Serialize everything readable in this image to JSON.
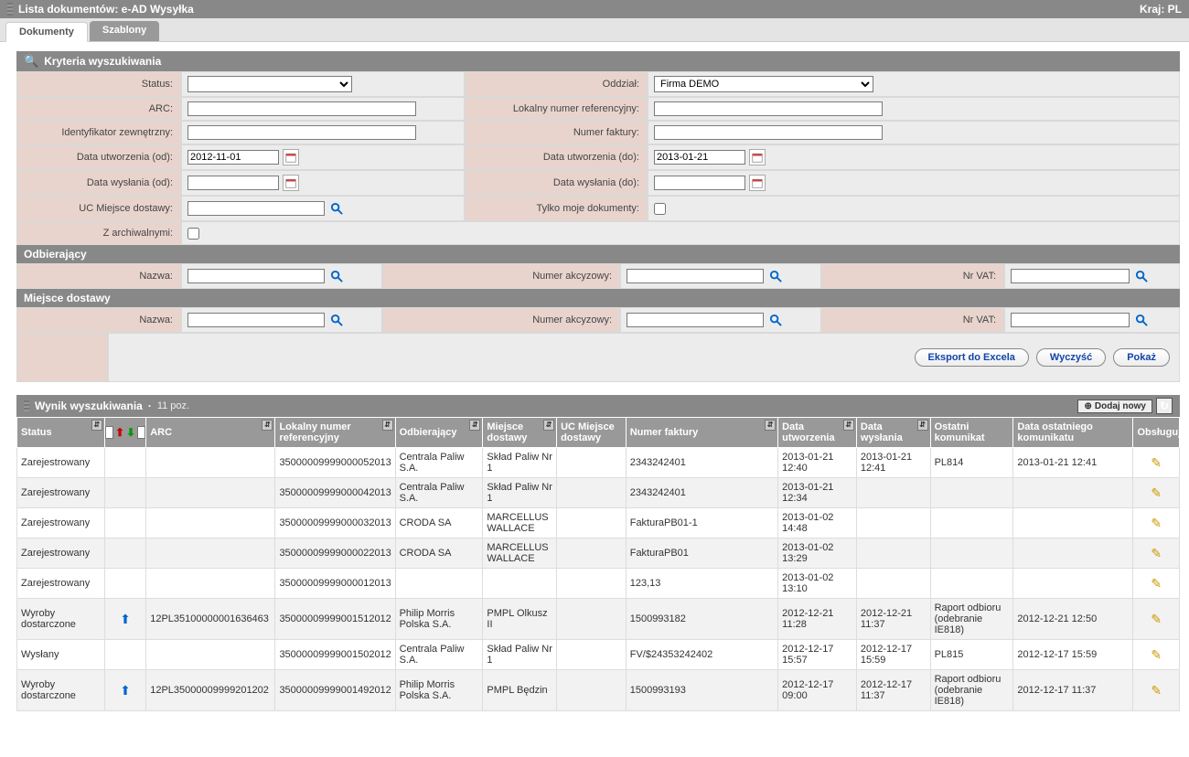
{
  "titlebar": {
    "left": "Lista dokumentów:  e-AD Wysyłka",
    "right": "Kraj: PL"
  },
  "tabs": [
    {
      "id": "documents",
      "label": "Dokumenty",
      "active": true
    },
    {
      "id": "templates",
      "label": "Szablony",
      "active": false
    }
  ],
  "sections": {
    "criteria_title": "Kryteria wyszukiwania",
    "recipient_title": "Odbierający",
    "delivery_title": "Miejsce dostawy",
    "results_title": "Wynik wyszukiwania",
    "results_count": "11 poz."
  },
  "labels": {
    "status": "Status:",
    "branch": "Oddział:",
    "arc": "ARC:",
    "local_ref": "Lokalny numer referencyjny:",
    "ext_id": "Identyfikator zewnętrzny:",
    "invoice_no": "Numer faktury:",
    "created_from": "Data utworzenia (od):",
    "created_to": "Data utworzenia (do):",
    "sent_from": "Data wysłania (od):",
    "sent_to": "Data wysłania (do):",
    "uc_delivery": "UC Miejsce dostawy:",
    "only_mine": "Tylko moje dokumenty:",
    "with_archive": "Z archiwalnymi:",
    "name": "Nazwa:",
    "excise_no": "Numer akcyzowy:",
    "vat_no": "Nr VAT:"
  },
  "values": {
    "status": "",
    "branch": "Firma DEMO",
    "arc": "",
    "local_ref": "",
    "ext_id": "",
    "invoice_no": "",
    "created_from": "2012-11-01",
    "created_to": "2013-01-21",
    "sent_from": "",
    "sent_to": "",
    "uc_delivery": "",
    "only_mine": false,
    "with_archive": false,
    "recipient_name": "",
    "recipient_excise": "",
    "recipient_vat": "",
    "delivery_name": "",
    "delivery_excise": "",
    "delivery_vat": ""
  },
  "buttons": {
    "export": "Eksport do Excela",
    "clear": "Wyczyść",
    "show": "Pokaż",
    "add_new": "Dodaj nowy"
  },
  "columns": {
    "status": "Status",
    "icons": "",
    "arc": "ARC",
    "local_ref": "Lokalny numer referencyjny",
    "recipient": "Odbierający",
    "delivery_place": "Miejsce dostawy",
    "uc_delivery": "UC Miejsce dostawy",
    "invoice": "Numer faktury",
    "created": "Data utworzenia",
    "sent": "Data wysłania",
    "last_msg": "Ostatni komunikat",
    "last_msg_date": "Data ostatniego komunikatu",
    "actions": "Obsługuj"
  },
  "column_widths": {
    "status": 95,
    "icons": 45,
    "arc": 140,
    "local_ref": 130,
    "recipient": 95,
    "delivery_place": 80,
    "uc_delivery": 75,
    "invoice": 165,
    "created": 85,
    "sent": 80,
    "last_msg": 90,
    "last_msg_date": 130,
    "actions": 50
  },
  "rows": [
    {
      "status": "Zarejestrowany",
      "icon": null,
      "arc": "",
      "local_ref": "35000009999000052013",
      "recipient": "Centrala Paliw S.A.",
      "delivery_place": "Skład Paliw Nr 1",
      "uc": "",
      "invoice": "2343242401",
      "created": "2013-01-21 12:40",
      "sent": "2013-01-21 12:41",
      "last_msg": "PL814",
      "last_msg_date": "2013-01-21 12:41"
    },
    {
      "status": "Zarejestrowany",
      "icon": null,
      "arc": "",
      "local_ref": "35000009999000042013",
      "recipient": "Centrala Paliw S.A.",
      "delivery_place": "Skład Paliw Nr 1",
      "uc": "",
      "invoice": "2343242401",
      "created": "2013-01-21 12:34",
      "sent": "",
      "last_msg": "",
      "last_msg_date": ""
    },
    {
      "status": "Zarejestrowany",
      "icon": null,
      "arc": "",
      "local_ref": "35000009999000032013",
      "recipient": "CRODA SA",
      "delivery_place": "MARCELLUS WALLACE",
      "uc": "",
      "invoice": "FakturaPB01-1",
      "created": "2013-01-02 14:48",
      "sent": "",
      "last_msg": "",
      "last_msg_date": ""
    },
    {
      "status": "Zarejestrowany",
      "icon": null,
      "arc": "",
      "local_ref": "35000009999000022013",
      "recipient": "CRODA SA",
      "delivery_place": "MARCELLUS WALLACE",
      "uc": "",
      "invoice": "FakturaPB01",
      "created": "2013-01-02 13:29",
      "sent": "",
      "last_msg": "",
      "last_msg_date": ""
    },
    {
      "status": "Zarejestrowany",
      "icon": null,
      "arc": "",
      "local_ref": "35000009999000012013",
      "recipient": "",
      "delivery_place": "",
      "uc": "",
      "invoice": "123,13",
      "created": "2013-01-02 13:10",
      "sent": "",
      "last_msg": "",
      "last_msg_date": ""
    },
    {
      "status": "Wyroby dostarczone",
      "icon": "up",
      "arc": "12PL35100000001636463",
      "local_ref": "35000009999001512012",
      "recipient": "Philip Morris Polska S.A.",
      "delivery_place": "PMPL Olkusz II",
      "uc": "",
      "invoice": "1500993182",
      "created": "2012-12-21 11:28",
      "sent": "2012-12-21 11:37",
      "last_msg": "Raport odbioru (odebranie IE818)",
      "last_msg_date": "2012-12-21 12:50"
    },
    {
      "status": "Wysłany",
      "icon": null,
      "arc": "",
      "local_ref": "35000009999001502012",
      "recipient": "Centrala Paliw S.A.",
      "delivery_place": "Skład Paliw Nr 1",
      "uc": "",
      "invoice": "FV/$24353242402",
      "created": "2012-12-17 15:57",
      "sent": "2012-12-17 15:59",
      "last_msg": "PL815",
      "last_msg_date": "2012-12-17 15:59"
    },
    {
      "status": "Wyroby dostarczone",
      "icon": "up",
      "arc": "12PL35000009999201202",
      "local_ref": "35000009999001492012",
      "recipient": "Philip Morris Polska S.A.",
      "delivery_place": "PMPL Będzin",
      "uc": "",
      "invoice": "1500993193",
      "created": "2012-12-17 09:00",
      "sent": "2012-12-17 11:37",
      "last_msg": "Raport odbioru (odebranie IE818)",
      "last_msg_date": "2012-12-17 11:37"
    }
  ],
  "colors": {
    "bar": "#888888",
    "bar_text": "#ffffff",
    "label_bg": "#e8d4cd",
    "input_bg": "#ececec",
    "btn_text": "#1245aa"
  }
}
